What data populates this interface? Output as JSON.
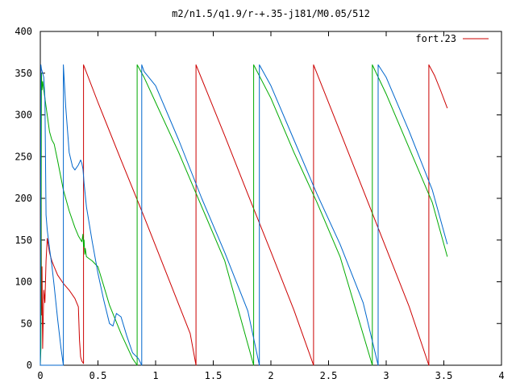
{
  "chart_data": {
    "type": "line",
    "title": "m2/n1.5/q1.9/r-+.35-j181/M0.05/512",
    "xlabel": "",
    "ylabel": "",
    "xlim": [
      0,
      4
    ],
    "ylim": [
      0,
      400
    ],
    "x_ticks": [
      "0",
      "0.5",
      "1",
      "1.5",
      "2",
      "2.5",
      "3",
      "3.5",
      "4"
    ],
    "y_ticks": [
      "0",
      "50",
      "100",
      "150",
      "200",
      "250",
      "300",
      "350",
      "400"
    ],
    "grid": false,
    "legend_position": "top-right",
    "legend_entries": [
      "fort.23"
    ],
    "series": [
      {
        "name": "fort.23",
        "color": "#cc0000",
        "x": [
          0.0,
          0.005,
          0.01,
          0.015,
          0.02,
          0.03,
          0.04,
          0.05,
          0.06,
          0.08,
          0.1,
          0.12,
          0.15,
          0.2,
          0.25,
          0.3,
          0.33,
          0.34,
          0.35,
          0.36,
          0.375,
          0.375,
          0.5,
          0.7,
          0.9,
          1.1,
          1.3,
          1.35,
          1.35,
          1.6,
          1.8,
          2.0,
          2.2,
          2.37,
          2.37,
          2.6,
          2.8,
          3.0,
          3.2,
          3.37,
          3.37,
          3.42,
          3.47,
          3.53
        ],
        "y": [
          0,
          355,
          60,
          118,
          20,
          90,
          75,
          125,
          152,
          135,
          125,
          118,
          108,
          98,
          90,
          80,
          70,
          30,
          10,
          5,
          2,
          360,
          315,
          246,
          178,
          108,
          38,
          0,
          360,
          275,
          205,
          136,
          66,
          0,
          360,
          280,
          210,
          140,
          70,
          0,
          360,
          347,
          330,
          308
        ]
      },
      {
        "name": "",
        "color": "#00aa00",
        "x": [
          0.0,
          0.005,
          0.01,
          0.015,
          0.02,
          0.03,
          0.05,
          0.08,
          0.1,
          0.12,
          0.15,
          0.2,
          0.25,
          0.3,
          0.33,
          0.36,
          0.37,
          0.375,
          0.38,
          0.385,
          0.39,
          0.4,
          0.45,
          0.5,
          0.55,
          0.6,
          0.7,
          0.8,
          0.84,
          0.84,
          0.9,
          1.0,
          1.2,
          1.4,
          1.6,
          1.85,
          1.85,
          2.0,
          2.2,
          2.4,
          2.6,
          2.88,
          2.88,
          3.0,
          3.2,
          3.4,
          3.53
        ],
        "y": [
          0,
          20,
          350,
          330,
          340,
          330,
          310,
          280,
          270,
          265,
          245,
          210,
          185,
          165,
          155,
          148,
          157,
          142,
          150,
          133,
          140,
          130,
          125,
          118,
          95,
          72,
          38,
          8,
          0,
          360,
          345,
          315,
          255,
          190,
          125,
          0,
          360,
          320,
          255,
          195,
          130,
          0,
          360,
          325,
          260,
          195,
          130
        ]
      },
      {
        "name": "",
        "color": "#0066cc",
        "x": [
          0.0,
          0.005,
          0.01,
          0.02,
          0.03,
          0.04,
          0.05,
          0.06,
          0.08,
          0.1,
          0.12,
          0.15,
          0.18,
          0.2,
          0.2,
          0.22,
          0.25,
          0.28,
          0.3,
          0.33,
          0.35,
          0.36,
          0.37,
          0.38,
          0.4,
          0.45,
          0.5,
          0.55,
          0.6,
          0.63,
          0.66,
          0.68,
          0.7,
          0.75,
          0.8,
          0.85,
          0.88,
          0.88,
          0.9,
          1.0,
          1.2,
          1.4,
          1.6,
          1.8,
          1.9,
          1.9,
          2.0,
          2.2,
          2.4,
          2.6,
          2.8,
          2.93,
          2.93,
          3.0,
          3.2,
          3.4,
          3.53
        ],
        "y": [
          0,
          360,
          355,
          350,
          345,
          320,
          180,
          162,
          140,
          120,
          95,
          55,
          20,
          0,
          360,
          310,
          255,
          238,
          234,
          240,
          246,
          242,
          235,
          218,
          190,
          148,
          110,
          78,
          50,
          47,
          62,
          60,
          58,
          35,
          15,
          8,
          0,
          360,
          352,
          335,
          270,
          200,
          135,
          65,
          0,
          360,
          335,
          270,
          205,
          145,
          75,
          0,
          360,
          345,
          280,
          210,
          145
        ]
      },
      {
        "name": "",
        "color": "#0066cc",
        "x": [
          0.0,
          0.2
        ],
        "y": [
          0,
          0
        ]
      }
    ]
  }
}
